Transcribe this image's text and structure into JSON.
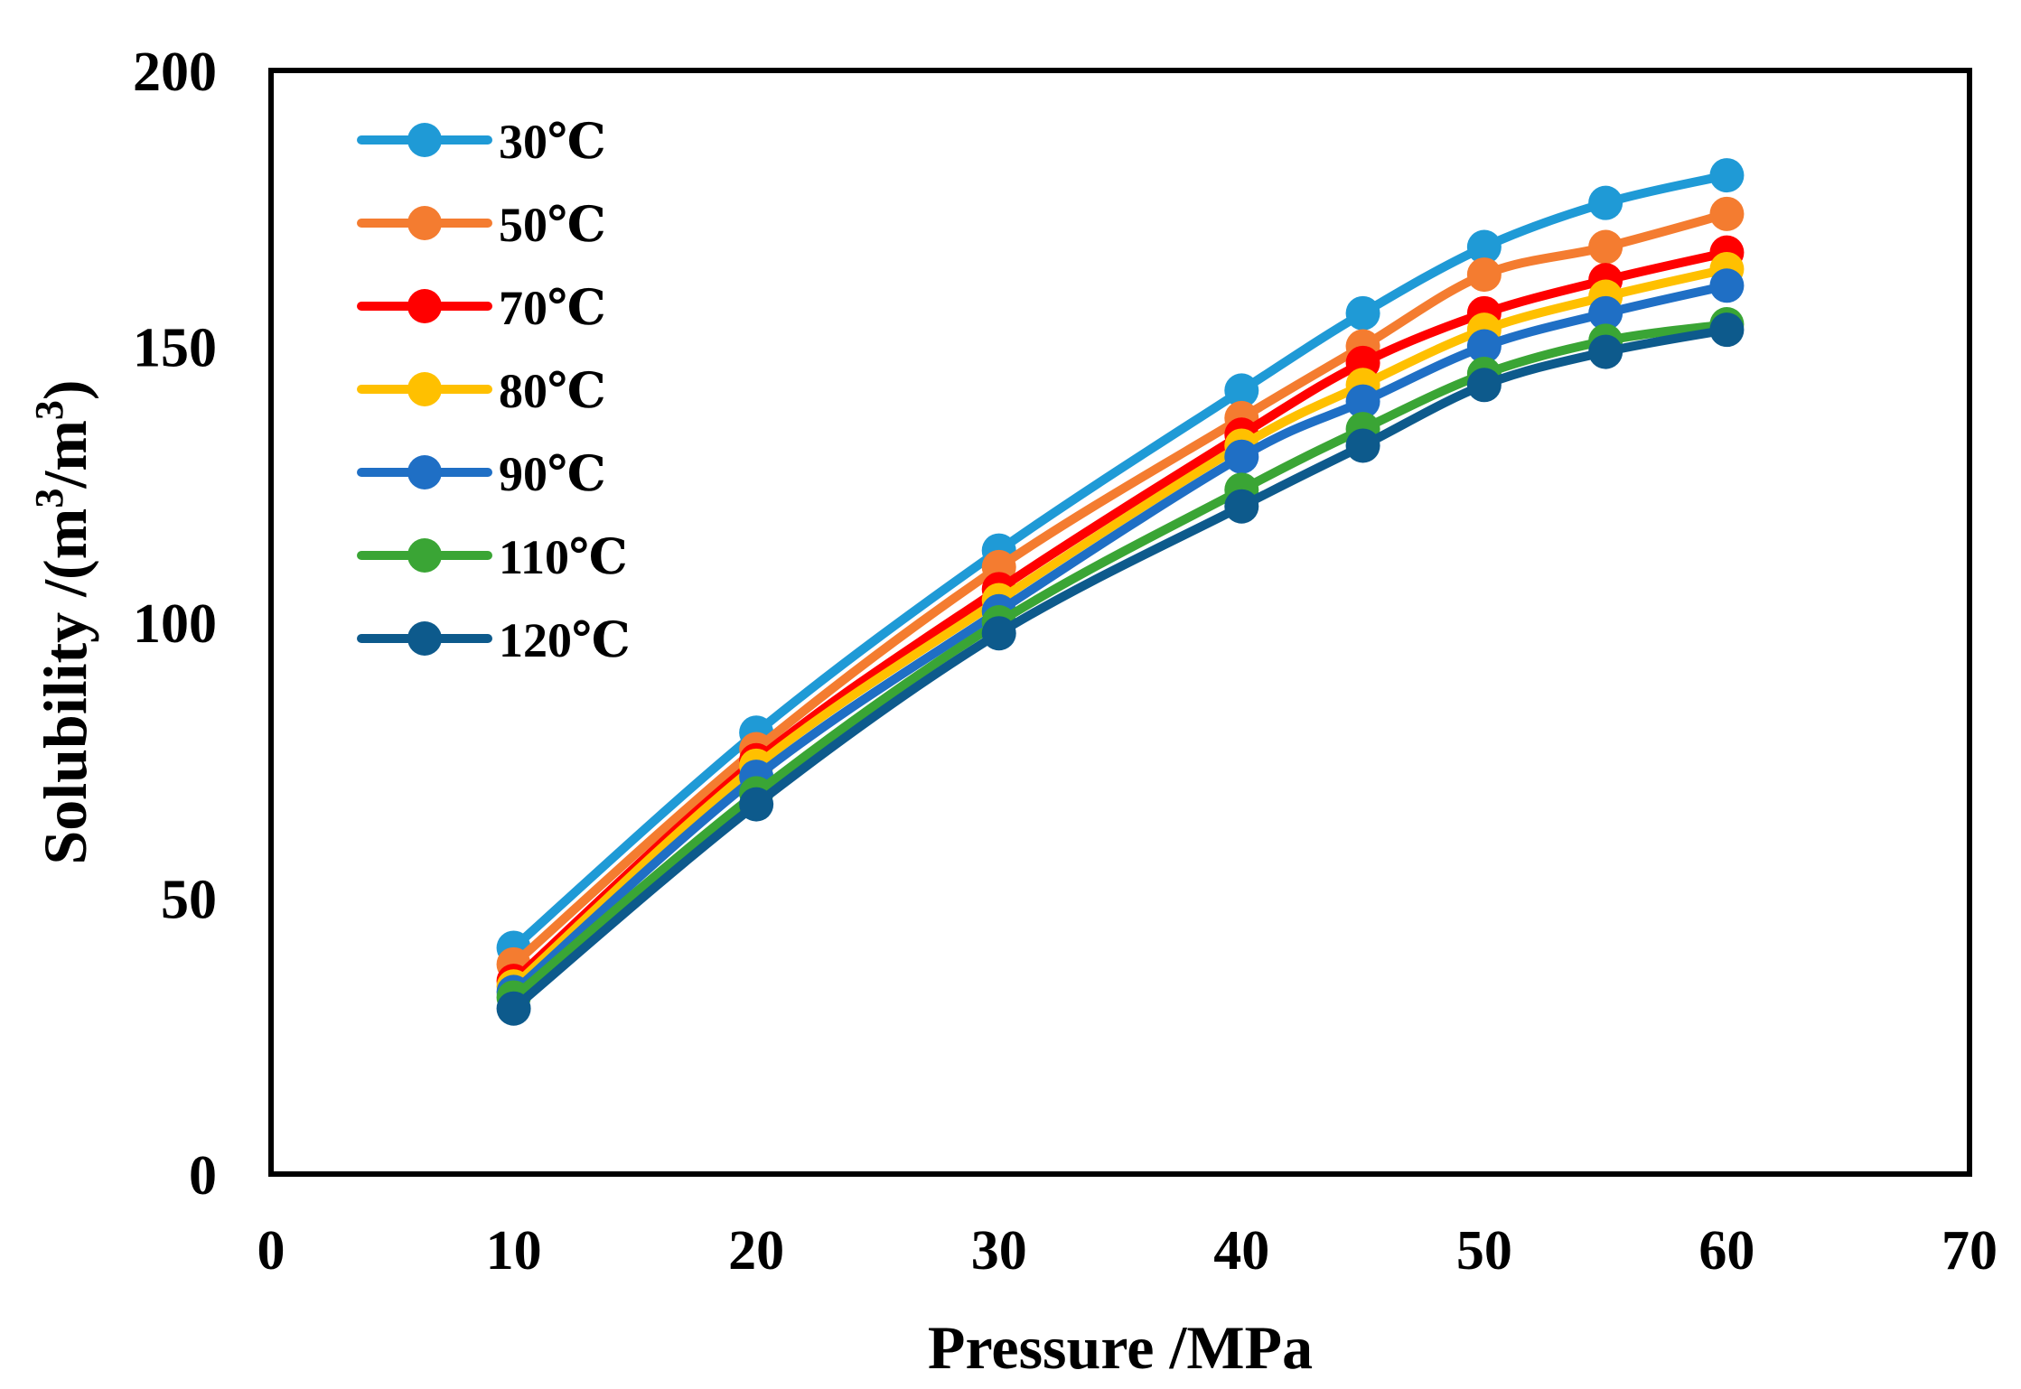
{
  "chart_data": {
    "type": "line",
    "title": "",
    "xlabel": "Pressure /MPa",
    "ylabel_main": "Solubility /(m",
    "ylabel_sup1": "3",
    "ylabel_mid": "/m",
    "ylabel_sup2": "3",
    "ylabel_end": ")",
    "xlim": [
      0,
      70
    ],
    "ylim": [
      0,
      200
    ],
    "xticks": [
      0,
      10,
      20,
      30,
      40,
      50,
      60,
      70
    ],
    "yticks": [
      0,
      50,
      100,
      150,
      200
    ],
    "grid": false,
    "legend_position": "top-left",
    "x": [
      10,
      20,
      30,
      40,
      45,
      50,
      55,
      60
    ],
    "series": [
      {
        "name": "30℃",
        "color": "#1f9ad6",
        "values": [
          41,
          80,
          113,
          142,
          156,
          168,
          176,
          181
        ]
      },
      {
        "name": "50℃",
        "color": "#f47c30",
        "values": [
          38,
          77,
          110,
          137,
          150,
          163,
          168,
          174
        ]
      },
      {
        "name": "70℃",
        "color": "#ff0000",
        "values": [
          35,
          75,
          106,
          134,
          147,
          156,
          162,
          167
        ]
      },
      {
        "name": "80℃",
        "color": "#ffc000",
        "values": [
          34,
          74,
          104,
          132,
          143,
          153,
          159,
          164
        ]
      },
      {
        "name": "90℃",
        "color": "#1f6fc5",
        "values": [
          33,
          72,
          102,
          130,
          140,
          150,
          156,
          161
        ]
      },
      {
        "name": "110℃",
        "color": "#3aa535",
        "values": [
          32,
          69,
          100,
          124,
          135,
          145,
          151,
          154
        ]
      },
      {
        "name": "120℃",
        "color": "#0d5a8c",
        "values": [
          30,
          67,
          98,
          121,
          132,
          143,
          149,
          153
        ]
      }
    ]
  }
}
